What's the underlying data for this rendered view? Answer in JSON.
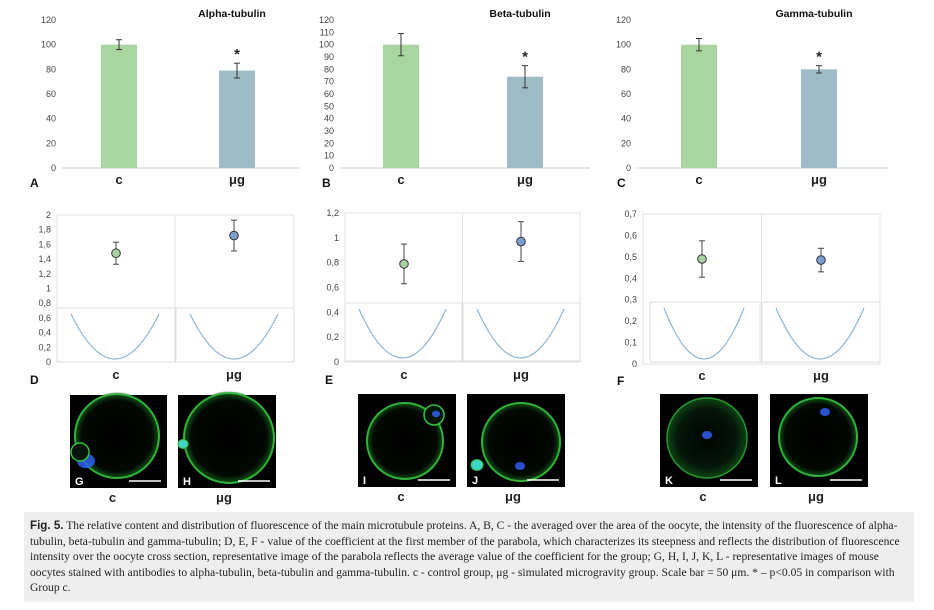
{
  "colors": {
    "control": "#a9d5a0",
    "microgravity": "#9ebcc8",
    "control_dot": "#a7d3a0",
    "microgravity_dot": "#7c9fcf",
    "parabola": "#8fb6cf",
    "cell_green": "#35c040",
    "nucleus": "#2f5ff0"
  },
  "chart_data": [
    {
      "type": "bar",
      "panel": "A",
      "title": "Alpha-tubulin",
      "categories": [
        "c",
        "μg"
      ],
      "values": [
        100,
        79
      ],
      "errors": [
        4,
        6
      ],
      "ylim": [
        0,
        120
      ],
      "ticks": [
        "0",
        "20",
        "40",
        "60",
        "80",
        "100",
        "120"
      ],
      "significance": "*"
    },
    {
      "type": "bar",
      "panel": "B",
      "title": "Beta-tubulin",
      "categories": [
        "c",
        "μg"
      ],
      "values": [
        100,
        74
      ],
      "errors": [
        9,
        9
      ],
      "ylim": [
        0,
        120
      ],
      "ticks": [
        "0",
        "10",
        "20",
        "30",
        "40",
        "50",
        "60",
        "70",
        "80",
        "90",
        "100",
        "110",
        "120"
      ],
      "significance": "*"
    },
    {
      "type": "bar",
      "panel": "C",
      "title": "Gamma-tubulin",
      "categories": [
        "c",
        "μg"
      ],
      "values": [
        100,
        80
      ],
      "errors": [
        5,
        3
      ],
      "ylim": [
        0,
        120
      ],
      "ticks": [
        "0",
        "20",
        "40",
        "60",
        "80",
        "100",
        "120"
      ],
      "significance": "*"
    },
    {
      "type": "scatter",
      "panel": "D",
      "categories": [
        "c",
        "μg"
      ],
      "values": [
        1.48,
        1.72
      ],
      "errors": [
        0.15,
        0.21
      ],
      "ylim": [
        0,
        2
      ],
      "ticks": [
        "0",
        "0,2",
        "0,4",
        "0,6",
        "0,8",
        "1",
        "1,2",
        "1,4",
        "1,6",
        "1,8",
        "2"
      ]
    },
    {
      "type": "scatter",
      "panel": "E",
      "categories": [
        "c",
        "μg"
      ],
      "values": [
        0.79,
        0.97
      ],
      "errors": [
        0.16,
        0.16
      ],
      "ylim": [
        0,
        1.2
      ],
      "ticks": [
        "0",
        "0,2",
        "0,4",
        "0,6",
        "0,8",
        "1",
        "1,2"
      ]
    },
    {
      "type": "scatter",
      "panel": "F",
      "categories": [
        "c",
        "μg"
      ],
      "values": [
        0.49,
        0.485
      ],
      "errors": [
        0.085,
        0.055
      ],
      "ylim": [
        0,
        0.7
      ],
      "ticks": [
        "0",
        "0,1",
        "0,2",
        "0,3",
        "0,4",
        "0,5",
        "0,6",
        "0,7"
      ]
    }
  ],
  "micrographs": {
    "letters": [
      "G",
      "H",
      "I",
      "J",
      "K",
      "L"
    ],
    "group_labels": [
      "c",
      "μg",
      "c",
      "μg",
      "c",
      "μg"
    ]
  },
  "caption": {
    "label": "Fig. 5.",
    "text": "The relative content and distribution of fluorescence of the main microtubule proteins. A, B, C - the averaged over the area of the oocyte, the intensity of the fluorescence of alpha-tubulin, beta-tubulin and gamma-tubulin; D, E, F - value of the coefficient at the first member of the parabola, which characterizes its steepness and reflects the distribution of fluorescence intensity over the oocyte cross section, representative image of the parabola reflects the average value of the coefficient for the group; G, H, I, J, K, L - representative images of mouse oocytes stained with antibodies to alpha-tubulin, beta-tubulin and gamma-tubulin. c - control group, μg - simulated microgravity group. Scale bar = 50 μm. * – p<0.05 in comparison with Group c."
  }
}
